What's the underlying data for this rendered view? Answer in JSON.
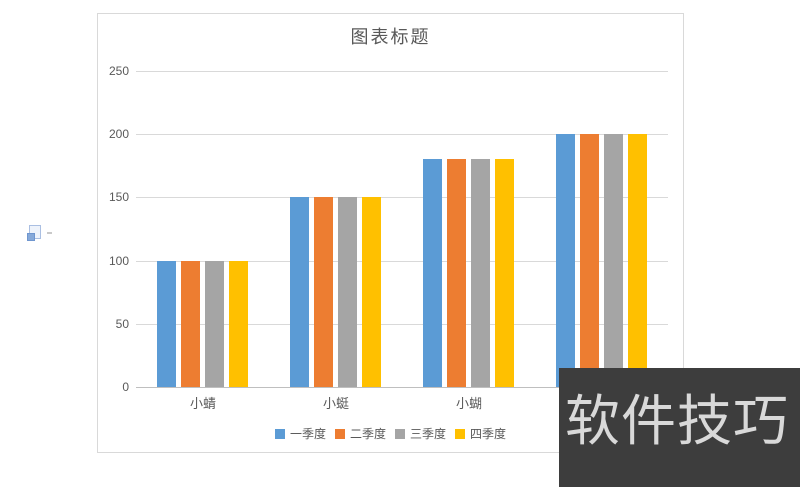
{
  "chart_data": {
    "type": "bar",
    "title": "图表标题",
    "categories": [
      "小蜻",
      "小蜓",
      "小蝴",
      ""
    ],
    "series": [
      {
        "name": "一季度",
        "color": "#5B9BD5",
        "values": [
          100,
          150,
          180,
          200
        ]
      },
      {
        "name": "二季度",
        "color": "#ED7D31",
        "values": [
          100,
          150,
          180,
          200
        ]
      },
      {
        "name": "三季度",
        "color": "#A5A5A5",
        "values": [
          100,
          150,
          180,
          200
        ]
      },
      {
        "name": "四季度",
        "color": "#FFC000",
        "values": [
          100,
          150,
          180,
          200
        ]
      }
    ],
    "xlabel": "",
    "ylabel": "",
    "ylim": [
      0,
      250
    ],
    "yticks": [
      0,
      50,
      100,
      150,
      200,
      250
    ],
    "grid": true,
    "legend_position": "bottom",
    "colors": {
      "gridline": "#d9d9d9",
      "axis_line": "#bfbfbf",
      "text": "#595959",
      "frame_border": "#d9d9d9"
    }
  },
  "watermark": {
    "text": "软件技巧",
    "background": "#3d3d3d",
    "text_color": "#d9d9d9"
  }
}
